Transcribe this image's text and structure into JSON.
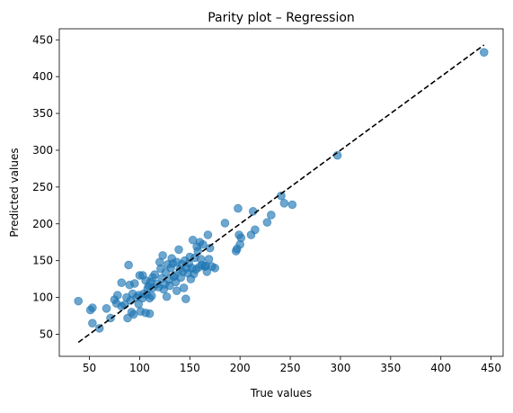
{
  "chart_data": {
    "type": "scatter",
    "title": "Parity plot – Regression",
    "xlabel": "True values",
    "ylabel": "Predicted values",
    "xlim": [
      20,
      462
    ],
    "ylim": [
      20,
      465
    ],
    "xticks": [
      50,
      100,
      150,
      200,
      250,
      300,
      350,
      400,
      450
    ],
    "yticks": [
      50,
      100,
      150,
      200,
      250,
      300,
      350,
      400,
      450
    ],
    "grid": false,
    "legend": "none",
    "series": [
      {
        "color": "#1f77b4",
        "marker": "circle",
        "alpha": 0.65,
        "points": [
          [
            39,
            95
          ],
          [
            51,
            83
          ],
          [
            53,
            86
          ],
          [
            53,
            65
          ],
          [
            60,
            58
          ],
          [
            67,
            85
          ],
          [
            71,
            72
          ],
          [
            75,
            97
          ],
          [
            77,
            92
          ],
          [
            78,
            103
          ],
          [
            82,
            120
          ],
          [
            82,
            88
          ],
          [
            85,
            90
          ],
          [
            87,
            100
          ],
          [
            88,
            72
          ],
          [
            89,
            144
          ],
          [
            90,
            117
          ],
          [
            91,
            96
          ],
          [
            92,
            80
          ],
          [
            93,
            105
          ],
          [
            94,
            77
          ],
          [
            95,
            119
          ],
          [
            97,
            100
          ],
          [
            99,
            103
          ],
          [
            99,
            91
          ],
          [
            100,
            130
          ],
          [
            101,
            81
          ],
          [
            103,
            130
          ],
          [
            103,
            99
          ],
          [
            104,
            105
          ],
          [
            106,
            123
          ],
          [
            106,
            79
          ],
          [
            107,
            104
          ],
          [
            108,
            112
          ],
          [
            109,
            116
          ],
          [
            110,
            99
          ],
          [
            110,
            78
          ],
          [
            111,
            121
          ],
          [
            112,
            102
          ],
          [
            113,
            127
          ],
          [
            113,
            113
          ],
          [
            115,
            131
          ],
          [
            117,
            118
          ],
          [
            119,
            114
          ],
          [
            120,
            148
          ],
          [
            121,
            139
          ],
          [
            122,
            126
          ],
          [
            123,
            157
          ],
          [
            124,
            111
          ],
          [
            125,
            118
          ],
          [
            126,
            134
          ],
          [
            127,
            101
          ],
          [
            128,
            145
          ],
          [
            129,
            124
          ],
          [
            130,
            116
          ],
          [
            131,
            140
          ],
          [
            132,
            153
          ],
          [
            133,
            146
          ],
          [
            134,
            128
          ],
          [
            135,
            130
          ],
          [
            136,
            121
          ],
          [
            137,
            148
          ],
          [
            137,
            109
          ],
          [
            139,
            165
          ],
          [
            140,
            138
          ],
          [
            141,
            127
          ],
          [
            142,
            145
          ],
          [
            143,
            135
          ],
          [
            144,
            113
          ],
          [
            145,
            150
          ],
          [
            146,
            98
          ],
          [
            147,
            140
          ],
          [
            148,
            133
          ],
          [
            149,
            146
          ],
          [
            150,
            155
          ],
          [
            151,
            125
          ],
          [
            152,
            140
          ],
          [
            153,
            178
          ],
          [
            154,
            132
          ],
          [
            155,
            154
          ],
          [
            156,
            138
          ],
          [
            157,
            169
          ],
          [
            158,
            163
          ],
          [
            159,
            141
          ],
          [
            160,
            175
          ],
          [
            161,
            152
          ],
          [
            162,
            144
          ],
          [
            163,
            172
          ],
          [
            165,
            142
          ],
          [
            166,
            143
          ],
          [
            167,
            135
          ],
          [
            168,
            185
          ],
          [
            169,
            152
          ],
          [
            170,
            167
          ],
          [
            172,
            142
          ],
          [
            175,
            140
          ],
          [
            185,
            201
          ],
          [
            196,
            163
          ],
          [
            197,
            166
          ],
          [
            198,
            221
          ],
          [
            199,
            185
          ],
          [
            200,
            172
          ],
          [
            201,
            181
          ],
          [
            211,
            185
          ],
          [
            213,
            217
          ],
          [
            215,
            192
          ],
          [
            227,
            202
          ],
          [
            231,
            212
          ],
          [
            241,
            238
          ],
          [
            244,
            228
          ],
          [
            252,
            226
          ],
          [
            297,
            293
          ],
          [
            443,
            433
          ]
        ]
      }
    ],
    "reference_line": {
      "style": "dashed",
      "color": "#000000",
      "from": [
        39,
        39
      ],
      "to": [
        443,
        443
      ]
    }
  }
}
